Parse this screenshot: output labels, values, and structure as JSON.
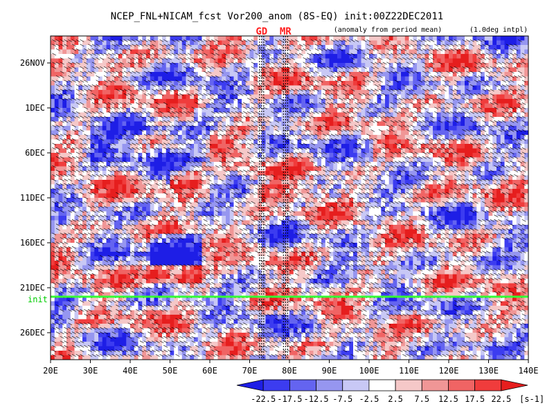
{
  "chart_data": {
    "type": "heatmap",
    "title": "NCEP_FNL+NICAM_fcst Vor200_anom (8S-EQ) init:00Z22DEC2011",
    "annotation_left": "(anomaly from period mean)",
    "annotation_right": "(1.0deg intpl)",
    "x_ticks": [
      "20E",
      "30E",
      "40E",
      "50E",
      "60E",
      "70E",
      "80E",
      "90E",
      "100E",
      "110E",
      "120E",
      "130E",
      "140E"
    ],
    "x_range_deg": [
      20,
      140
    ],
    "y_ticks": [
      "26NOV",
      "1DEC",
      "6DEC",
      "11DEC",
      "16DEC",
      "21DEC",
      "26DEC"
    ],
    "y_range": [
      "23NOV2011",
      "29DEC2011"
    ],
    "markers": [
      {
        "label": "GD",
        "lon": 73
      },
      {
        "label": "MR",
        "lon": 79
      }
    ],
    "init_line": {
      "label": "init",
      "date": "22DEC2011"
    },
    "colorbar": {
      "labels": [
        "-22.5",
        "-17.5",
        "-12.5",
        "-7.5",
        "-2.5",
        "2.5",
        "7.5",
        "12.5",
        "17.5",
        "22.5"
      ],
      "unit": "[s-1]",
      "colors": [
        "#1e1ee6",
        "#3c3cf0",
        "#6464f0",
        "#9696f0",
        "#c8c8f5",
        "#ffffff",
        "#f5c8c8",
        "#f09696",
        "#f06464",
        "#f03c3c",
        "#e61e1e"
      ]
    }
  }
}
